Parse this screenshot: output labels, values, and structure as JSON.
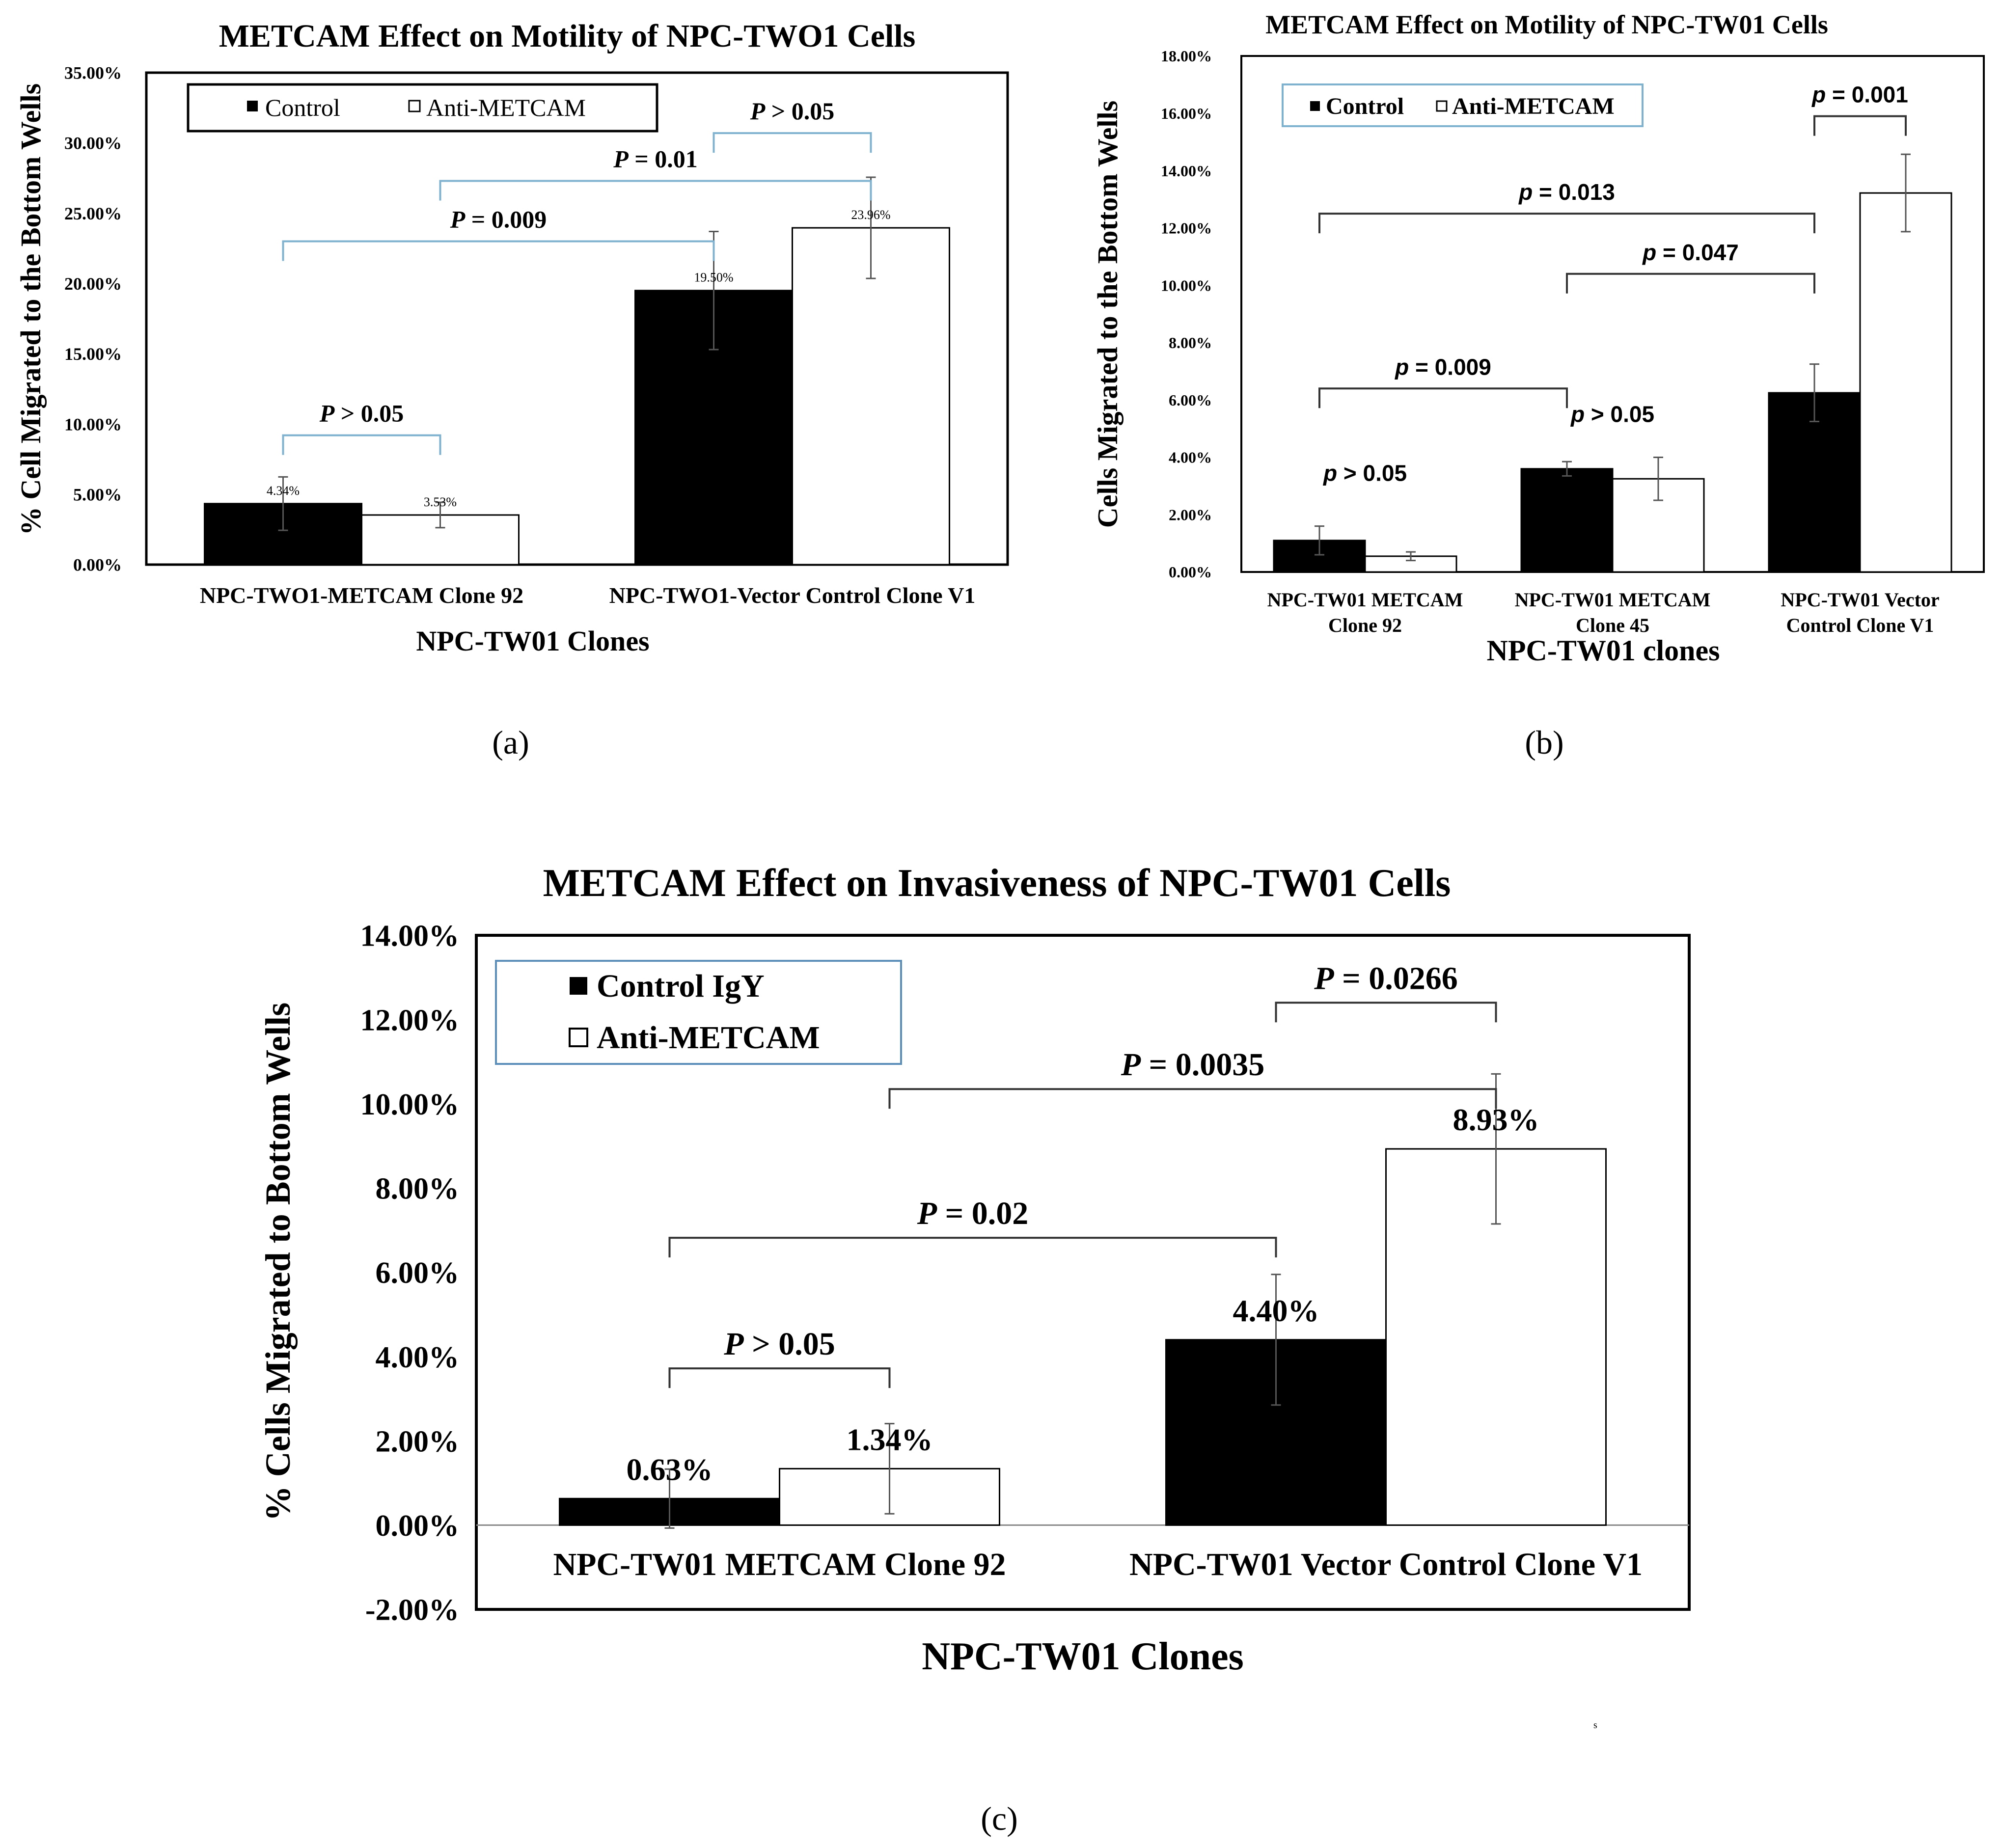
{
  "figure": {
    "panel_labels": [
      "(a)",
      "(b)",
      "(c)"
    ],
    "stray_mark": "s"
  },
  "colors": {
    "control_fill": "#000000",
    "anti_fill": "#ffffff",
    "bracket_blue": "#7fb2cf",
    "bracket_dark": "#333333",
    "legend_border_blue": "#5b8fb9"
  },
  "chart_data": [
    {
      "id": "a",
      "type": "bar",
      "title": "METCAM Effect on Motility of NPC-TWO1 Cells",
      "xlabel": "NPC-TW01 Clones",
      "ylabel": "% Cell Migrated to the Bottom Wells",
      "categories": [
        "NPC-TWO1-METCAM Clone 92",
        "NPC-TWO1-Vector Control Clone V1"
      ],
      "ylim": [
        0,
        0.35
      ],
      "yticks": [
        0,
        0.05,
        0.1,
        0.15,
        0.2,
        0.25,
        0.3,
        0.35
      ],
      "ytick_labels": [
        "0.00%",
        "5.00%",
        "10.00%",
        "15.00%",
        "20.00%",
        "25.00%",
        "30.00%",
        "35.00%"
      ],
      "legend": [
        "Control",
        "Anti-METCAM"
      ],
      "series": [
        {
          "name": "Control",
          "values": [
            0.0434,
            0.195
          ],
          "errors": [
            0.019,
            0.042
          ],
          "labels": [
            "4.34%",
            "19.50%"
          ]
        },
        {
          "name": "Anti-METCAM",
          "values": [
            0.0353,
            0.2396
          ],
          "errors": [
            0.009,
            0.036
          ],
          "labels": [
            "3.53%",
            "23.96%"
          ]
        }
      ],
      "significance": [
        {
          "label": "P > 0.05",
          "from": [
            0,
            0
          ],
          "to": [
            0,
            1
          ],
          "level": 0.092
        },
        {
          "label": "P = 0.009",
          "from": [
            0,
            0
          ],
          "to": [
            1,
            0
          ],
          "level": 0.23
        },
        {
          "label": "P = 0.01",
          "from": [
            0,
            1
          ],
          "to": [
            1,
            1
          ],
          "level": 0.273
        },
        {
          "label": "P > 0.05",
          "from": [
            1,
            0
          ],
          "to": [
            1,
            1
          ],
          "level": 0.307
        }
      ]
    },
    {
      "id": "b",
      "type": "bar",
      "title": "METCAM Effect on Motility of NPC-TW01 Cells",
      "xlabel": "NPC-TW01 clones",
      "ylabel": "Cells Migrated to the Bottom Wells",
      "categories": [
        "NPC-TW01 METCAM Clone 92",
        "NPC-TW01 METCAM Clone 45",
        "NPC-TW01 Vector Control Clone V1"
      ],
      "category_lines": [
        [
          "NPC-TW01 METCAM",
          "Clone 92"
        ],
        [
          "NPC-TW01 METCAM",
          "Clone 45"
        ],
        [
          "NPC-TW01 Vector",
          "Control Clone V1"
        ]
      ],
      "ylim": [
        0,
        0.18
      ],
      "yticks": [
        0,
        0.02,
        0.04,
        0.06,
        0.08,
        0.1,
        0.12,
        0.14,
        0.16,
        0.18
      ],
      "ytick_labels": [
        "0.00%",
        "2.00%",
        "4.00%",
        "6.00%",
        "8.00%",
        "10.00%",
        "12.00%",
        "14.00%",
        "16.00%",
        "18.00%"
      ],
      "legend": [
        "Control",
        "Anti-METCAM"
      ],
      "series": [
        {
          "name": "Control",
          "values": [
            0.011,
            0.036,
            0.0625
          ],
          "errors": [
            0.005,
            0.0025,
            0.01
          ]
        },
        {
          "name": "Anti-METCAM",
          "values": [
            0.0055,
            0.0325,
            0.1322
          ],
          "errors": [
            0.0015,
            0.0075,
            0.0135
          ]
        }
      ],
      "significance": [
        {
          "label": "p > 0.05",
          "at": 0,
          "level": 0.027
        },
        {
          "label": "p > 0.05",
          "at": 1,
          "level": 0.0475
        },
        {
          "label": "p = 0.009",
          "from": [
            0,
            0
          ],
          "to": [
            1,
            0
          ],
          "level": 0.064
        },
        {
          "label": "p = 0.047",
          "from": [
            1,
            0
          ],
          "to": [
            2,
            0
          ],
          "level": 0.104
        },
        {
          "label": "p = 0.013",
          "from": [
            0,
            0
          ],
          "to": [
            2,
            0
          ],
          "level": 0.125
        },
        {
          "label": "p = 0.001",
          "from": [
            2,
            0
          ],
          "to": [
            2,
            1
          ],
          "level": 0.159
        }
      ]
    },
    {
      "id": "c",
      "type": "bar",
      "title": "METCAM Effect on Invasiveness of NPC-TW01 Cells",
      "xlabel": "NPC-TW01 Clones",
      "ylabel": "% Cells Migrated to Bottom Wells",
      "categories": [
        "NPC-TW01 METCAM Clone 92",
        "NPC-TW01 Vector Control Clone V1"
      ],
      "ylim": [
        -0.02,
        0.14
      ],
      "yticks": [
        -0.02,
        0,
        0.02,
        0.04,
        0.06,
        0.08,
        0.1,
        0.12,
        0.14
      ],
      "ytick_labels": [
        "-2.00%",
        "0.00%",
        "2.00%",
        "4.00%",
        "6.00%",
        "8.00%",
        "10.00%",
        "12.00%",
        "14.00%"
      ],
      "legend": [
        "Control IgY",
        "Anti-METCAM"
      ],
      "series": [
        {
          "name": "Control IgY",
          "values": [
            0.0063,
            0.044
          ],
          "errors": [
            0.007,
            0.0155
          ],
          "labels": [
            "0.63%",
            "4.40%"
          ]
        },
        {
          "name": "Anti-METCAM",
          "values": [
            0.0134,
            0.0893
          ],
          "errors": [
            0.0107,
            0.0178
          ],
          "labels": [
            "1.34%",
            "8.93%"
          ]
        }
      ],
      "significance": [
        {
          "label": "P > 0.05",
          "from": [
            0,
            0
          ],
          "to": [
            0,
            1
          ],
          "level": 0.0372
        },
        {
          "label": "P = 0.02",
          "from": [
            0,
            0
          ],
          "to": [
            1,
            0
          ],
          "level": 0.0682
        },
        {
          "label": "P = 0.0035",
          "from": [
            0,
            1
          ],
          "to": [
            1,
            1
          ],
          "level": 0.1035
        },
        {
          "label": "P = 0.0266",
          "from": [
            1,
            0
          ],
          "to": [
            1,
            1
          ],
          "level": 0.124
        }
      ]
    }
  ]
}
